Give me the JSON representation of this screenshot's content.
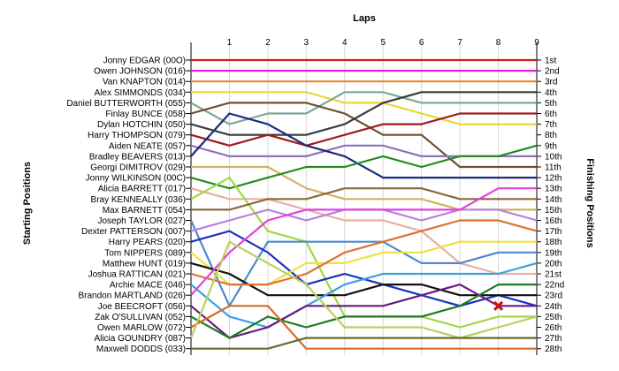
{
  "chart_data": {
    "type": "line",
    "title": "",
    "xlabel": "Laps",
    "ylabel_left": "Starting Positions",
    "ylabel_right": "Finishing Positions",
    "x": [
      0,
      1,
      2,
      3,
      4,
      5,
      6,
      7,
      8,
      9
    ],
    "lap_ticks": [
      "1",
      "2",
      "3",
      "4",
      "5",
      "6",
      "7",
      "8",
      "9"
    ],
    "position_count": 28,
    "finish_labels": [
      "1st",
      "2nd",
      "3rd",
      "4th",
      "5th",
      "6th",
      "7th",
      "8th",
      "9th",
      "10th",
      "11th",
      "12th",
      "13th",
      "14th",
      "15th",
      "16th",
      "17th",
      "18th",
      "19th",
      "20th",
      "21st",
      "22nd",
      "23rd",
      "24th",
      "25th",
      "26th",
      "27th",
      "28th"
    ],
    "grid": true,
    "retirement_marker": {
      "lap": 8,
      "position": 24,
      "color": "#cc1111"
    },
    "series": [
      {
        "name": "Jonny EDGAR (00O)",
        "color": "#cc1f1f",
        "positions": [
          1,
          1,
          1,
          1,
          1,
          1,
          1,
          1,
          1,
          1
        ]
      },
      {
        "name": "Owen JOHNSON (016)",
        "color": "#e020e0",
        "positions": [
          2,
          2,
          2,
          2,
          2,
          2,
          2,
          2,
          2,
          2
        ]
      },
      {
        "name": "Van KNAPTON (014)",
        "color": "#e08a30",
        "positions": [
          3,
          3,
          3,
          3,
          3,
          3,
          3,
          3,
          3,
          3
        ]
      },
      {
        "name": "Alex SIMMONDS (034)",
        "color": "#e8d830",
        "positions": [
          4,
          4,
          4,
          4,
          5,
          5,
          6,
          7,
          7,
          7
        ]
      },
      {
        "name": "Daniel BUTTERWORTH (055)",
        "color": "#7aa89a",
        "positions": [
          5,
          7,
          6,
          6,
          4,
          4,
          5,
          5,
          5,
          5
        ]
      },
      {
        "name": "Finlay BUNCE (058)",
        "color": "#705030",
        "positions": [
          6,
          5,
          5,
          5,
          6,
          8,
          8,
          11,
          11,
          11
        ]
      },
      {
        "name": "Dylan HOTCHIN (050)",
        "color": "#3a3a3a",
        "positions": [
          7,
          8,
          8,
          8,
          7,
          5,
          4,
          4,
          4,
          4
        ]
      },
      {
        "name": "Harry THOMPSON (079)",
        "color": "#a11a1a",
        "positions": [
          8,
          9,
          8,
          9,
          8,
          7,
          7,
          6,
          6,
          6
        ]
      },
      {
        "name": "Aiden NEATE (057)",
        "color": "#9070c0",
        "positions": [
          9,
          10,
          10,
          10,
          9,
          9,
          10,
          10,
          10,
          10
        ]
      },
      {
        "name": "Bradley BEAVERS (013)",
        "color": "#1a2a80",
        "positions": [
          10,
          6,
          7,
          9,
          10,
          12,
          12,
          12,
          12,
          12
        ]
      },
      {
        "name": "Georgi DIMITROV (029)",
        "color": "#d8b060",
        "positions": [
          11,
          11,
          11,
          13,
          14,
          14,
          14,
          15,
          15,
          15
        ]
      },
      {
        "name": "Jonny WILKINSON (00C)",
        "color": "#228b22",
        "positions": [
          12,
          13,
          12,
          11,
          11,
          10,
          11,
          10,
          10,
          9
        ]
      },
      {
        "name": "Alicia BARRETT (017)",
        "color": "#e8b0a0",
        "positions": [
          13,
          14,
          14,
          15,
          16,
          16,
          17,
          20,
          21,
          21
        ]
      },
      {
        "name": "Bray KENNEALLY (036)",
        "color": "#a0d840",
        "positions": [
          14,
          12,
          17,
          18,
          25,
          25,
          25,
          26,
          25,
          25
        ]
      },
      {
        "name": "Max BARNETT (054)",
        "color": "#8a6a3a",
        "positions": [
          15,
          15,
          14,
          14,
          13,
          13,
          13,
          14,
          14,
          14
        ]
      },
      {
        "name": "Joseph TAYLOR (027)",
        "color": "#4a8ad0",
        "positions": [
          16,
          24,
          18,
          18,
          18,
          18,
          20,
          20,
          19,
          19
        ]
      },
      {
        "name": "Dexter PATTERSON (007)",
        "color": "#b880e0",
        "positions": [
          17,
          16,
          15,
          16,
          15,
          15,
          16,
          15,
          15,
          16
        ]
      },
      {
        "name": "Harry PEARS (020)",
        "color": "#1a30c0",
        "positions": [
          18,
          17,
          19,
          22,
          21,
          22,
          23,
          24,
          23,
          24
        ]
      },
      {
        "name": "Tom NIPPERS (089)",
        "color": "#f0e040",
        "positions": [
          19,
          22,
          22,
          20,
          20,
          19,
          19,
          18,
          18,
          18
        ]
      },
      {
        "name": "Matthew HUNT (019)",
        "color": "#111111",
        "positions": [
          20,
          21,
          23,
          23,
          23,
          22,
          22,
          23,
          23,
          23
        ]
      },
      {
        "name": "Joshua RATTICAN (021)",
        "color": "#e07030",
        "positions": [
          21,
          22,
          22,
          21,
          19,
          18,
          17,
          16,
          16,
          17
        ]
      },
      {
        "name": "Archie MACE (046)",
        "color": "#3aa0e0",
        "positions": [
          22,
          25,
          26,
          24,
          22,
          21,
          21,
          21,
          21,
          20
        ]
      },
      {
        "name": "Brandon MARTLAND (026)",
        "color": "#e040e0",
        "positions": [
          23,
          19,
          16,
          15,
          15,
          15,
          15,
          15,
          13,
          13
        ]
      },
      {
        "name": "Joe BEECROFT (056)",
        "color": "#6a1a80",
        "positions": [
          24,
          27,
          26,
          24,
          24,
          24,
          23,
          22,
          24,
          24
        ]
      },
      {
        "name": "Zak O'SULLIVAN (052)",
        "color": "#1e7a1e",
        "positions": [
          25,
          27,
          25,
          26,
          25,
          25,
          25,
          24,
          22,
          22
        ]
      },
      {
        "name": "Owen MARLOW (072)",
        "color": "#d86a20",
        "positions": [
          26,
          24,
          24,
          28,
          28,
          28,
          28,
          28,
          28,
          28
        ]
      },
      {
        "name": "Alicia GOUNDRY (087)",
        "color": "#b8d060",
        "positions": [
          27,
          18,
          20,
          22,
          26,
          26,
          26,
          27,
          26,
          25
        ]
      },
      {
        "name": "Maxwell DODDS (033)",
        "color": "#6a6a30",
        "positions": [
          28,
          28,
          28,
          27,
          27,
          27,
          27,
          27,
          27,
          27
        ]
      }
    ]
  }
}
